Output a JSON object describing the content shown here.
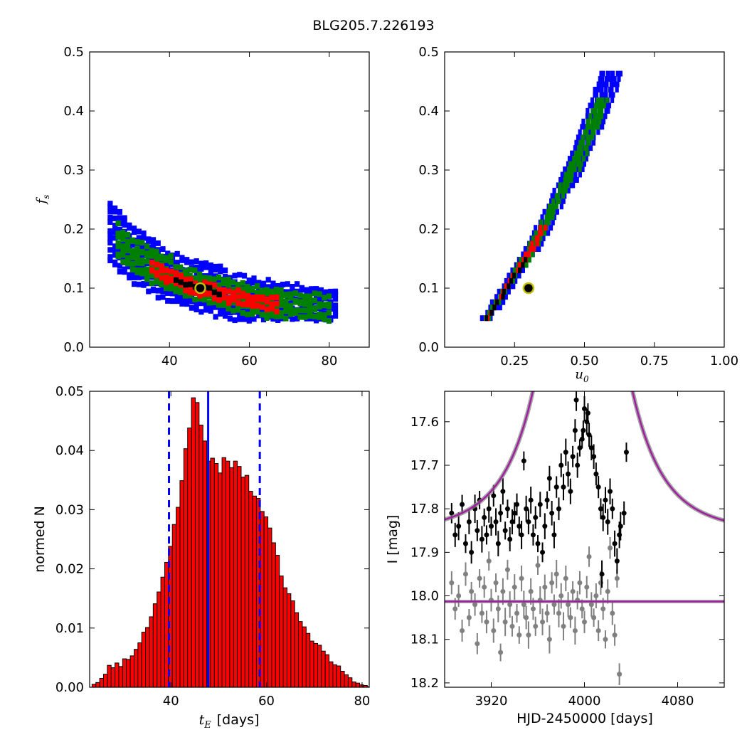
{
  "figure": {
    "title": "BLG205.7.226193"
  },
  "colors": {
    "blue": "#0000ff",
    "green": "#008000",
    "red": "#ff0000",
    "black": "#000000",
    "marker_ring": "#bfbf00",
    "bar_fill": "#ff0000",
    "model_line": "#a020a0",
    "model_band": "#808080",
    "data_bright": "#000000",
    "data_faint": "#808080"
  },
  "chart_data": [
    {
      "id": "fs_vs_tE",
      "type": "heatmap",
      "xlabel": "",
      "ylabel_symbol": "f",
      "ylabel_sub": "s",
      "xlim": [
        20,
        90
      ],
      "ylim": [
        0.0,
        0.5
      ],
      "xticks": [
        "40",
        "60",
        "80"
      ],
      "yticks": [
        "0.0",
        "0.1",
        "0.2",
        "0.3",
        "0.4",
        "0.5"
      ],
      "regions": [
        "blue",
        "green",
        "red",
        "black"
      ],
      "best_fit": {
        "x": 47.7,
        "y": 0.1
      }
    },
    {
      "id": "fs_vs_u0",
      "type": "heatmap",
      "xlabel_symbol": "u",
      "xlabel_sub": "0",
      "ylabel": "",
      "xlim": [
        0.0,
        1.0
      ],
      "ylim": [
        0.0,
        0.5
      ],
      "xticks": [
        "0.25",
        "0.50",
        "0.75",
        "1.00"
      ],
      "yticks": [
        "0.0",
        "0.1",
        "0.2",
        "0.3",
        "0.4",
        "0.5"
      ],
      "regions": [
        "blue",
        "green",
        "red",
        "black"
      ],
      "best_fit": {
        "x": 0.3,
        "y": 0.1
      }
    },
    {
      "id": "tE_histogram",
      "type": "bar",
      "xlabel_symbol": "t",
      "xlabel_sub": "E",
      "xlabel_unit": "[days]",
      "ylabel": "normed N",
      "xlim": [
        23,
        81.5
      ],
      "ylim": [
        0.0,
        0.05
      ],
      "xticks": [
        "40",
        "60",
        "80"
      ],
      "yticks": [
        "0.00",
        "0.01",
        "0.02",
        "0.03",
        "0.04",
        "0.05"
      ],
      "bin_start": 23.5,
      "bin_width": 0.8,
      "values": [
        0.0005,
        0.0008,
        0.0015,
        0.0022,
        0.0037,
        0.0033,
        0.0041,
        0.0035,
        0.0048,
        0.0047,
        0.0053,
        0.0064,
        0.0075,
        0.0093,
        0.0101,
        0.0119,
        0.0141,
        0.0161,
        0.0186,
        0.0211,
        0.0238,
        0.0275,
        0.0304,
        0.0349,
        0.0403,
        0.0438,
        0.0489,
        0.0481,
        0.0443,
        0.0416,
        0.0382,
        0.0387,
        0.0378,
        0.0362,
        0.0388,
        0.0382,
        0.0371,
        0.0382,
        0.0373,
        0.0355,
        0.0358,
        0.0331,
        0.0323,
        0.0319,
        0.0297,
        0.0288,
        0.0269,
        0.0244,
        0.0223,
        0.0188,
        0.0168,
        0.0158,
        0.0146,
        0.0126,
        0.0111,
        0.0102,
        0.0091,
        0.0078,
        0.0074,
        0.0071,
        0.0061,
        0.0055,
        0.0043,
        0.0038,
        0.0036,
        0.0027,
        0.0021,
        0.0016,
        0.0009,
        0.0007,
        0.0004,
        0.0003,
        0.0001
      ],
      "median": 47.8,
      "lower": 39.6,
      "upper": 58.6
    },
    {
      "id": "light_curve",
      "type": "scatter",
      "xlabel": "HJD-2450000 [days]",
      "ylabel": "I [mag]",
      "xlim": [
        3880,
        4120
      ],
      "ylim": [
        18.21,
        17.53
      ],
      "xticks": [
        "3920",
        "4000",
        "4080"
      ],
      "yticks": [
        "17.6",
        "17.7",
        "17.8",
        "17.9",
        "18.0",
        "18.1",
        "18.2"
      ],
      "model": {
        "t0": 3998.5,
        "tE": 47.8,
        "u0": 0.3,
        "baseline_total": 17.855,
        "baseline_source": 18.013
      },
      "series_bright": [
        [
          3886,
          17.81
        ],
        [
          3889,
          17.86
        ],
        [
          3892,
          17.84
        ],
        [
          3895,
          17.79
        ],
        [
          3898,
          17.88
        ],
        [
          3901,
          17.83
        ],
        [
          3903,
          17.9
        ],
        [
          3906,
          17.8
        ],
        [
          3908,
          17.85
        ],
        [
          3910,
          17.78
        ],
        [
          3912,
          17.87
        ],
        [
          3914,
          17.82
        ],
        [
          3916,
          17.86
        ],
        [
          3918,
          17.8
        ],
        [
          3920,
          17.84
        ],
        [
          3922,
          17.77
        ],
        [
          3924,
          17.83
        ],
        [
          3926,
          17.88
        ],
        [
          3928,
          17.81
        ],
        [
          3930,
          17.76
        ],
        [
          3932,
          17.85
        ],
        [
          3934,
          17.8
        ],
        [
          3936,
          17.87
        ],
        [
          3938,
          17.83
        ],
        [
          3940,
          17.81
        ],
        [
          3942,
          17.79
        ],
        [
          3944,
          17.84
        ],
        [
          3946,
          17.86
        ],
        [
          3948,
          17.69
        ],
        [
          3950,
          17.8
        ],
        [
          3952,
          17.83
        ],
        [
          3954,
          17.78
        ],
        [
          3956,
          17.86
        ],
        [
          3958,
          17.82
        ],
        [
          3960,
          17.88
        ],
        [
          3962,
          17.79
        ],
        [
          3964,
          17.9
        ],
        [
          3966,
          17.84
        ],
        [
          3968,
          17.78
        ],
        [
          3970,
          17.73
        ],
        [
          3972,
          17.81
        ],
        [
          3974,
          17.86
        ],
        [
          3976,
          17.75
        ],
        [
          3978,
          17.8
        ],
        [
          3980,
          17.7
        ],
        [
          3982,
          17.75
        ],
        [
          3984,
          17.67
        ],
        [
          3986,
          17.72
        ],
        [
          3988,
          17.76
        ],
        [
          3990,
          17.68
        ],
        [
          3992,
          17.62
        ],
        [
          3994,
          17.7
        ],
        [
          3996,
          17.66
        ],
        [
          3998,
          17.64
        ],
        [
          4000,
          17.57
        ],
        [
          4002,
          17.6
        ],
        [
          4004,
          17.63
        ],
        [
          4006,
          17.66
        ],
        [
          4008,
          17.68
        ],
        [
          4010,
          17.72
        ],
        [
          4012,
          17.75
        ],
        [
          4014,
          17.8
        ],
        [
          4016,
          17.82
        ],
        [
          4018,
          17.78
        ],
        [
          4020,
          17.83
        ],
        [
          4022,
          17.76
        ],
        [
          4024,
          17.8
        ],
        [
          4026,
          17.88
        ],
        [
          4028,
          17.92
        ],
        [
          4030,
          17.86
        ],
        [
          3993,
          17.55
        ],
        [
          3999,
          17.62
        ],
        [
          4003,
          17.58
        ],
        [
          4015,
          17.95
        ],
        [
          4036,
          17.67
        ],
        [
          4031,
          17.84
        ],
        [
          4034,
          17.81
        ]
      ],
      "series_faint": [
        [
          3886,
          17.97
        ],
        [
          3889,
          18.03
        ],
        [
          3892,
          18.0
        ],
        [
          3895,
          18.08
        ],
        [
          3898,
          17.95
        ],
        [
          3901,
          18.05
        ],
        [
          3903,
          17.99
        ],
        [
          3906,
          18.02
        ],
        [
          3908,
          18.11
        ],
        [
          3910,
          17.96
        ],
        [
          3912,
          18.04
        ],
        [
          3914,
          17.98
        ],
        [
          3916,
          18.06
        ],
        [
          3918,
          17.92
        ],
        [
          3920,
          18.01
        ],
        [
          3922,
          18.08
        ],
        [
          3924,
          17.97
        ],
        [
          3926,
          18.03
        ],
        [
          3928,
          18.13
        ],
        [
          3930,
          17.99
        ],
        [
          3932,
          18.06
        ],
        [
          3934,
          17.94
        ],
        [
          3936,
          18.02
        ],
        [
          3938,
          18.07
        ],
        [
          3940,
          17.98
        ],
        [
          3942,
          18.04
        ],
        [
          3944,
          18.09
        ],
        [
          3946,
          17.96
        ],
        [
          3948,
          18.02
        ],
        [
          3950,
          18.05
        ],
        [
          3952,
          18.09
        ],
        [
          3954,
          17.99
        ],
        [
          3956,
          18.03
        ],
        [
          3958,
          18.07
        ],
        [
          3960,
          17.93
        ],
        [
          3962,
          18.01
        ],
        [
          3964,
          18.06
        ],
        [
          3966,
          17.98
        ],
        [
          3968,
          18.04
        ],
        [
          3970,
          18.1
        ],
        [
          3972,
          17.97
        ],
        [
          3974,
          18.02
        ],
        [
          3976,
          17.95
        ],
        [
          3978,
          18.04
        ],
        [
          3980,
          18.0
        ],
        [
          3982,
          18.07
        ],
        [
          3984,
          17.96
        ],
        [
          3986,
          18.02
        ],
        [
          3988,
          18.05
        ],
        [
          3990,
          17.99
        ],
        [
          3992,
          18.08
        ],
        [
          3994,
          18.01
        ],
        [
          3996,
          17.97
        ],
        [
          3998,
          18.03
        ],
        [
          4000,
          18.06
        ],
        [
          4002,
          17.98
        ],
        [
          4004,
          17.91
        ],
        [
          4006,
          18.02
        ],
        [
          4008,
          18.05
        ],
        [
          4010,
          18.0
        ],
        [
          4012,
          18.08
        ],
        [
          4014,
          17.97
        ],
        [
          4016,
          18.03
        ],
        [
          4018,
          18.1
        ],
        [
          4020,
          17.99
        ],
        [
          4022,
          17.89
        ],
        [
          4024,
          18.04
        ],
        [
          4026,
          18.09
        ],
        [
          4028,
          17.96
        ],
        [
          4030,
          18.18
        ]
      ]
    }
  ]
}
